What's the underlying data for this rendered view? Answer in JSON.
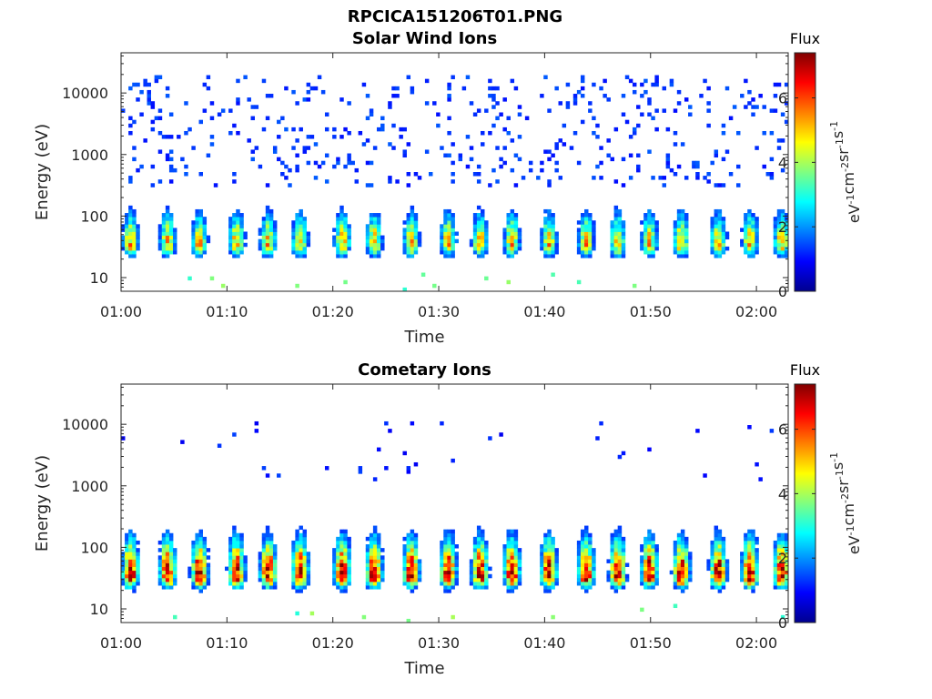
{
  "figure": {
    "title": "RPCICA151206T01.PNG"
  },
  "chart_data": [
    {
      "type": "heatmap",
      "title": "Solar Wind Ions",
      "xlabel": "Time",
      "ylabel": "Energy (eV)",
      "x_ticks": [
        "01:00",
        "01:10",
        "01:20",
        "01:30",
        "01:40",
        "01:50",
        "02:00"
      ],
      "x_range": [
        "01:00",
        "02:03"
      ],
      "y_scale": "log",
      "y_ticks": [
        "10",
        "100",
        "1000",
        "10000"
      ],
      "y_range": [
        6,
        45000
      ],
      "colorbar": {
        "title": "Flux",
        "label": "eV-1cm-2sr-1s-1",
        "ticks": [
          "0",
          "2",
          "4",
          "6"
        ],
        "range": [
          0,
          7.4
        ],
        "colormap": "jet"
      },
      "burst_times_min": [
        0.5,
        4.0,
        7.0,
        10.5,
        13.5,
        16.5,
        20.5,
        23.5,
        27.0,
        30.5,
        33.5,
        36.5,
        40.0,
        43.5,
        46.5,
        49.5,
        52.5,
        56.0,
        59.0,
        62.0
      ],
      "burst_peak_energy_ev": 35,
      "burst_peak_flux": 5.0,
      "background_energy_ev": [
        300,
        20000
      ],
      "background_flux": 1.0
    },
    {
      "type": "heatmap",
      "title": "Cometary Ions",
      "xlabel": "Time",
      "ylabel": "Energy (eV)",
      "x_ticks": [
        "01:00",
        "01:10",
        "01:20",
        "01:30",
        "01:40",
        "01:50",
        "02:00"
      ],
      "x_range": [
        "01:00",
        "02:03"
      ],
      "y_scale": "log",
      "y_ticks": [
        "10",
        "100",
        "1000",
        "10000"
      ],
      "y_range": [
        6,
        45000
      ],
      "colorbar": {
        "title": "Flux",
        "label": "eV-1cm-2sr-1s-1",
        "ticks": [
          "0",
          "2",
          "4",
          "6"
        ],
        "range": [
          0,
          7.4
        ],
        "colormap": "jet"
      },
      "burst_times_min": [
        0.5,
        4.0,
        7.0,
        10.5,
        13.5,
        16.5,
        20.5,
        23.5,
        27.0,
        30.5,
        33.5,
        36.5,
        40.0,
        43.5,
        46.5,
        49.5,
        52.5,
        56.0,
        59.0,
        62.0
      ],
      "burst_peak_energy_ev": 35,
      "burst_peak_flux": 7.0,
      "background_energy_ev": [
        1000,
        12000
      ],
      "background_flux": 0.8
    }
  ]
}
